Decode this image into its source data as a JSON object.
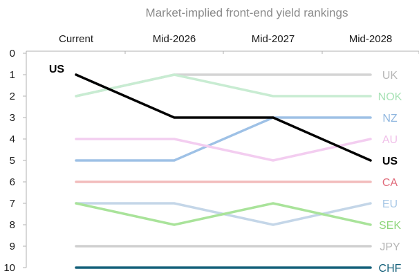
{
  "chart_data": {
    "type": "line",
    "title": "Market-implied front-end yield rankings",
    "xlabel": "",
    "ylabel": "",
    "categories": [
      "Current",
      "Mid-2026",
      "Mid-2027",
      "Mid-2028"
    ],
    "ylim": [
      0,
      10
    ],
    "y_inverted": true,
    "yticks": [
      0,
      1,
      2,
      3,
      4,
      5,
      6,
      7,
      8,
      9,
      10
    ],
    "grid": false,
    "series": [
      {
        "name": "UK",
        "values": [
          2,
          1,
          1,
          1
        ],
        "color": "#d4d4d4"
      },
      {
        "name": "NOK",
        "values": [
          2,
          1,
          2,
          2
        ],
        "color": "#c8ecd2"
      },
      {
        "name": "NZ",
        "values": [
          5,
          5,
          3,
          3
        ],
        "color": "#9ec1e6"
      },
      {
        "name": "AU",
        "values": [
          4,
          4,
          5,
          4
        ],
        "color": "#f3cdf0"
      },
      {
        "name": "CA",
        "values": [
          6,
          6,
          6,
          6
        ],
        "color": "#f2bcbc"
      },
      {
        "name": "EU",
        "values": [
          7,
          7,
          8,
          7
        ],
        "color": "#c4d6e8"
      },
      {
        "name": "SEK",
        "values": [
          7,
          8,
          7,
          8
        ],
        "color": "#a9e39a"
      },
      {
        "name": "JPY",
        "values": [
          9,
          9,
          9,
          9
        ],
        "color": "#cfcfcf"
      },
      {
        "name": "CHF",
        "values": [
          10,
          10,
          10,
          10
        ],
        "color": "#14607a"
      },
      {
        "name": "US",
        "values": [
          1,
          3,
          3,
          5
        ],
        "color": "#000000"
      }
    ],
    "label_colors": {
      "UK": "#b5b5b5",
      "NOK": "#a8e2b6",
      "NZ": "#8fb6df",
      "AU": "#f0bfe9",
      "CA": "#e06a7a",
      "EU": "#a8c8e6",
      "SEK": "#8ed67b",
      "JPY": "#b5b5b5",
      "CHF": "#14607a",
      "US": "#000000"
    },
    "start_label": "US"
  }
}
